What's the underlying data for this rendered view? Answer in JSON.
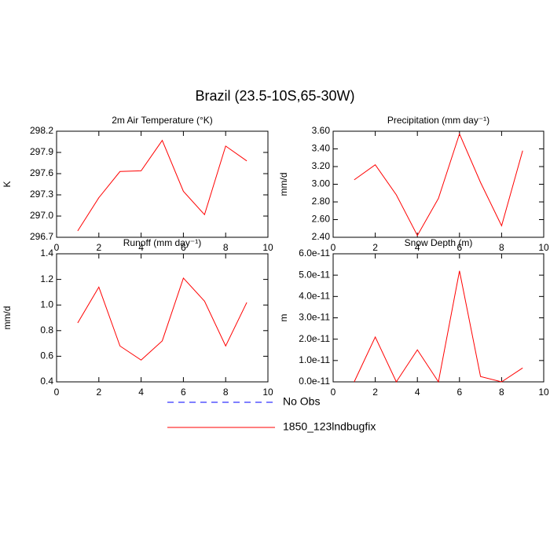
{
  "title": "Brazil (23.5-10S,65-30W)",
  "legend": [
    {
      "name": "No Obs",
      "color": "#0000ff",
      "dash": true
    },
    {
      "name": "1850_123lndbugfix",
      "color": "#ff0000",
      "dash": false
    }
  ],
  "chart_data": [
    {
      "type": "line",
      "title": "2m Air Temperature (°K)",
      "y_label": "K",
      "color": "#ff0000",
      "x": [
        1,
        2,
        3,
        4,
        5,
        6,
        7,
        8,
        9
      ],
      "values": [
        296.79,
        297.26,
        297.63,
        297.64,
        298.07,
        297.35,
        297.02,
        297.99,
        297.78
      ],
      "xlim": [
        0,
        10
      ],
      "xticks": [
        0,
        2,
        4,
        6,
        8,
        10
      ],
      "ylim": [
        296.7,
        298.2
      ],
      "yticks": [
        296.7,
        {
          "value": 297,
          "label": "297.0"
        },
        297.3,
        297.6,
        297.9,
        298.2
      ]
    },
    {
      "type": "line",
      "title": "Precipitation (mm day⁻¹)",
      "y_label": "mm/d",
      "color": "#ff0000",
      "x": [
        1,
        2,
        3,
        4,
        5,
        6,
        7,
        8,
        9
      ],
      "values": [
        3.05,
        3.22,
        2.88,
        2.42,
        2.84,
        3.57,
        3.02,
        2.53,
        3.38
      ],
      "xlim": [
        0,
        10
      ],
      "xticks": [
        0,
        2,
        4,
        6,
        8,
        10
      ],
      "ylim": [
        2.4,
        3.6
      ],
      "yticks": [
        {
          "value": 2.4,
          "label": "2.40"
        },
        {
          "value": 2.6,
          "label": "2.60"
        },
        {
          "value": 2.8,
          "label": "2.80"
        },
        {
          "value": 3,
          "label": "3.00"
        },
        {
          "value": 3.2,
          "label": "3.20"
        },
        {
          "value": 3.4,
          "label": "3.40"
        },
        {
          "value": 3.6,
          "label": "3.60"
        }
      ]
    },
    {
      "type": "line",
      "title": "Runoff (mm day⁻¹)",
      "y_label": "mm/d",
      "color": "#ff0000",
      "x": [
        1,
        2,
        3,
        4,
        5,
        6,
        7,
        8,
        9
      ],
      "values": [
        0.86,
        1.14,
        0.68,
        0.57,
        0.72,
        1.21,
        1.03,
        0.68,
        1.02
      ],
      "xlim": [
        0,
        10
      ],
      "xticks": [
        0,
        2,
        4,
        6,
        8,
        10
      ],
      "ylim": [
        0.4,
        1.4
      ],
      "yticks": [
        0.4,
        0.6,
        0.8,
        {
          "value": 1,
          "label": "1.0"
        },
        1.2,
        1.4
      ]
    },
    {
      "type": "line",
      "title": "Snow Depth (m)",
      "y_label": "m",
      "color": "#ff0000",
      "x": [
        1,
        2,
        3,
        4,
        5,
        6,
        7,
        8,
        9
      ],
      "values": [
        0,
        2.1e-11,
        0,
        1.5e-11,
        0,
        5.2e-11,
        2.5e-12,
        0,
        6.5e-12
      ],
      "xlim": [
        0,
        10
      ],
      "xticks": [
        0,
        2,
        4,
        6,
        8,
        10
      ],
      "ylim": [
        0,
        6e-11
      ],
      "yticks": [
        {
          "value": 0,
          "label": "0.0e-11"
        },
        {
          "value": 1e-11,
          "label": "1.0e-11"
        },
        {
          "value": 2e-11,
          "label": "2.0e-11"
        },
        {
          "value": 3e-11,
          "label": "3.0e-11"
        },
        {
          "value": 4e-11,
          "label": "4.0e-11"
        },
        {
          "value": 5e-11,
          "label": "5.0e-11"
        },
        {
          "value": 6e-11,
          "label": "6.0e-11"
        }
      ]
    }
  ]
}
